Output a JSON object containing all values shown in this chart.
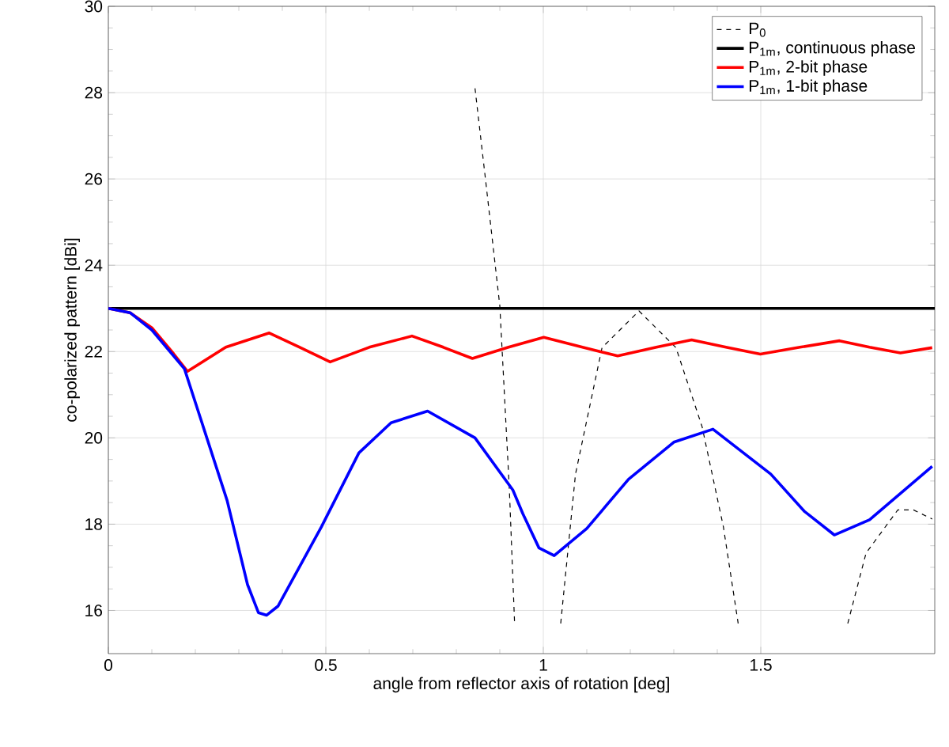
{
  "chart_data": {
    "type": "line",
    "xlabel": "angle from reflector axis of rotation [deg]",
    "ylabel": "co-polarized pattern [dBi]",
    "xlim": [
      0,
      1.9
    ],
    "ylim": [
      15,
      30
    ],
    "xticks": [
      0,
      0.5,
      1,
      1.5
    ],
    "yticks": [
      16,
      18,
      20,
      22,
      24,
      26,
      28,
      30
    ],
    "grid": true,
    "legend": "top right",
    "series": [
      {
        "name": "P$_{0}$",
        "color": "#000000",
        "line_style": "dashed",
        "x": [
          0.843,
          0.867,
          0.9,
          0.922,
          0.934,
          0.99,
          1.04,
          1.074,
          1.135,
          1.22,
          1.305,
          1.365,
          1.414,
          1.448,
          1.55,
          1.7,
          1.742,
          1.815,
          1.851,
          1.894
        ],
        "values": [
          28.1,
          26.0,
          23.06,
          18.8,
          15.7,
          null,
          15.7,
          19.16,
          22.09,
          22.94,
          22.09,
          20.26,
          17.94,
          15.7,
          null,
          15.7,
          17.33,
          18.33,
          18.33,
          18.12
        ]
      },
      {
        "name": "P$_{1m}$, continuous phase",
        "color": "#000000",
        "line_style": "solid",
        "x": [
          0,
          1.9
        ],
        "values": [
          23,
          23
        ]
      },
      {
        "name": "P$_{1m}$, 2-bit phase",
        "color": "#ff0000",
        "line_style": "solid",
        "x": [
          0,
          0.05,
          0.1,
          0.15,
          0.182,
          0.27,
          0.37,
          0.44,
          0.51,
          0.6,
          0.698,
          0.77,
          0.837,
          0.92,
          1.001,
          1.09,
          1.171,
          1.26,
          1.341,
          1.42,
          1.499,
          1.59,
          1.681,
          1.75,
          1.821,
          1.894
        ],
        "values": [
          23,
          22.9,
          22.55,
          21.95,
          21.54,
          22.1,
          22.43,
          22.1,
          21.76,
          22.1,
          22.36,
          22.1,
          21.84,
          22.1,
          22.33,
          22.1,
          21.9,
          22.1,
          22.27,
          22.1,
          21.94,
          22.1,
          22.25,
          22.1,
          21.97,
          22.09
        ]
      },
      {
        "name": "P$_{1m}$, 1-bit phase",
        "color": "#0000ff",
        "line_style": "solid",
        "x": [
          0,
          0.05,
          0.1,
          0.175,
          0.273,
          0.32,
          0.345,
          0.364,
          0.39,
          0.49,
          0.576,
          0.65,
          0.734,
          0.843,
          0.93,
          0.953,
          0.99,
          1.025,
          1.1,
          1.196,
          1.3,
          1.39,
          1.523,
          1.6,
          1.669,
          1.75,
          1.894
        ],
        "values": [
          23,
          22.9,
          22.5,
          21.6,
          18.55,
          16.6,
          15.95,
          15.89,
          16.1,
          17.94,
          19.65,
          20.35,
          20.62,
          20.0,
          18.79,
          18.24,
          17.45,
          17.27,
          17.9,
          19.04,
          19.9,
          20.2,
          19.16,
          18.3,
          17.75,
          18.1,
          19.34
        ]
      }
    ]
  }
}
